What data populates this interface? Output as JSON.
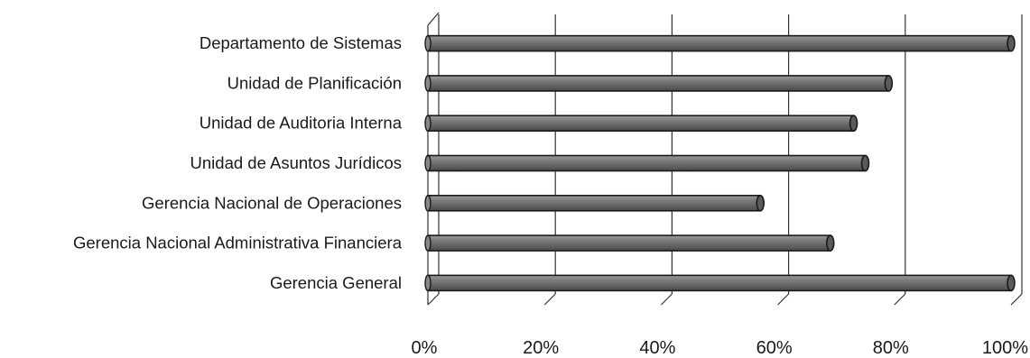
{
  "chart_data": {
    "type": "bar",
    "orientation": "horizontal",
    "style": "3d-cylinder",
    "title": "",
    "xlabel": "",
    "ylabel": "",
    "categories": [
      "Departamento de Sistemas",
      "Unidad de Planificación",
      "Unidad de Auditoria Interna",
      "Unidad de Asuntos Jurídicos",
      "Gerencia Nacional de Operaciones",
      "Gerencia Nacional Administrativa Financiera",
      "Gerencia General"
    ],
    "values": [
      100,
      79,
      73,
      75,
      57,
      69,
      100
    ],
    "xlim": [
      0,
      100
    ],
    "xticks": [
      "0%",
      "20%",
      "40%",
      "60%",
      "80%",
      "100%"
    ],
    "grid": "vertical",
    "legend": "none",
    "bar_color": "#6e6e6e",
    "bar_edge_color": "#1a1a1a"
  }
}
